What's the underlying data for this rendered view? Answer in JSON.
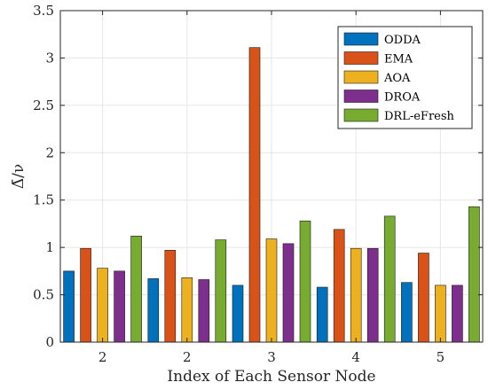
{
  "chart_data": {
    "type": "bar",
    "xlabel": "Index of Each Sensor Node",
    "ylabel": "Δ̄/ν",
    "ylim": [
      0,
      3.5
    ],
    "yticks": [
      0,
      0.5,
      1,
      1.5,
      2,
      2.5,
      3,
      3.5
    ],
    "categories": [
      "2",
      "2",
      "3",
      "4",
      "5"
    ],
    "series": [
      {
        "name": "ODDA",
        "color": "#0072BD",
        "values": [
          0.75,
          0.67,
          0.6,
          0.58,
          0.63
        ]
      },
      {
        "name": "EMA",
        "color": "#D95319",
        "values": [
          0.99,
          0.97,
          3.11,
          1.19,
          0.94
        ]
      },
      {
        "name": "AOA",
        "color": "#EDB120",
        "values": [
          0.78,
          0.68,
          1.09,
          0.99,
          0.6
        ]
      },
      {
        "name": "DROA",
        "color": "#7E2F8E",
        "values": [
          0.75,
          0.66,
          1.04,
          0.99,
          0.6
        ]
      },
      {
        "name": "DRL-eFresh",
        "color": "#77AC30",
        "values": [
          1.12,
          1.08,
          1.28,
          1.33,
          1.43
        ]
      }
    ],
    "grid": true,
    "legend_position": "top-right"
  }
}
